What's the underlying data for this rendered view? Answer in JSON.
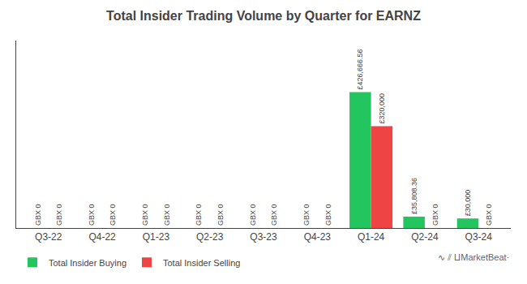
{
  "chart_data": {
    "type": "bar",
    "title": "Total Insider Trading Volume by Quarter for EARNZ",
    "categories": [
      "Q3-22",
      "Q4-22",
      "Q1-23",
      "Q2-23",
      "Q3-23",
      "Q4-23",
      "Q1-24",
      "Q2-24",
      "Q3-24"
    ],
    "series": [
      {
        "name": "Total Insider Buying",
        "color": "#22c55e",
        "values": [
          0,
          0,
          0,
          0,
          0,
          0,
          426666.56,
          35808.36,
          30000
        ],
        "value_labels": [
          "GBX 0",
          "GBX 0",
          "GBX 0",
          "GBX 0",
          "GBX 0",
          "GBX 0",
          "£426,666.56",
          "£35,808.36",
          "£30,000"
        ]
      },
      {
        "name": "Total Insider Selling",
        "color": "#ef4444",
        "values": [
          0,
          0,
          0,
          0,
          0,
          0,
          320000,
          0,
          0
        ],
        "value_labels": [
          "GBX 0",
          "GBX 0",
          "GBX 0",
          "GBX 0",
          "GBX 0",
          "GBX 0",
          "£320,000",
          "GBX 0",
          "GBX 0"
        ]
      }
    ],
    "ylim": [
      0,
      588799.8528
    ],
    "grid": false,
    "legend": "bottom left",
    "data_labels": true,
    "tick_labels": "x",
    "annotations": [
      "∿",
      "⫽",
      "⨿​MarketBeat·"
    ]
  }
}
